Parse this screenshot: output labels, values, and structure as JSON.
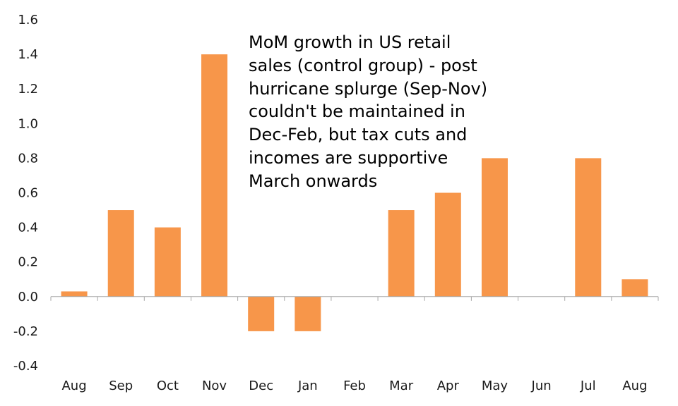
{
  "chart_data": {
    "type": "bar",
    "title": "",
    "xlabel": "",
    "ylabel": "",
    "categories": [
      "Aug",
      "Sep",
      "Oct",
      "Nov",
      "Dec",
      "Jan",
      "Feb",
      "Mar",
      "Apr",
      "May",
      "Jun",
      "Jul",
      "Aug"
    ],
    "values": [
      0.03,
      0.5,
      0.4,
      1.4,
      -0.2,
      -0.2,
      0.0,
      0.5,
      0.6,
      0.8,
      0.0,
      0.8,
      0.1
    ],
    "ylim": [
      -0.4,
      1.6
    ],
    "yticks": [
      "1.6",
      "1.4",
      "1.2",
      "1.0",
      "0.8",
      "0.6",
      "0.4",
      "0.2",
      "0.0",
      "-0.2",
      "-0.4"
    ],
    "grid": false,
    "bar_color": "#F7964A",
    "annotation_lines": [
      "MoM growth in US retail",
      "sales (control group) - post",
      "hurricane splurge (Sep-Nov)",
      "couldn't be maintained in",
      "Dec-Feb, but tax cuts and",
      "incomes are supportive",
      "March onwards"
    ]
  }
}
